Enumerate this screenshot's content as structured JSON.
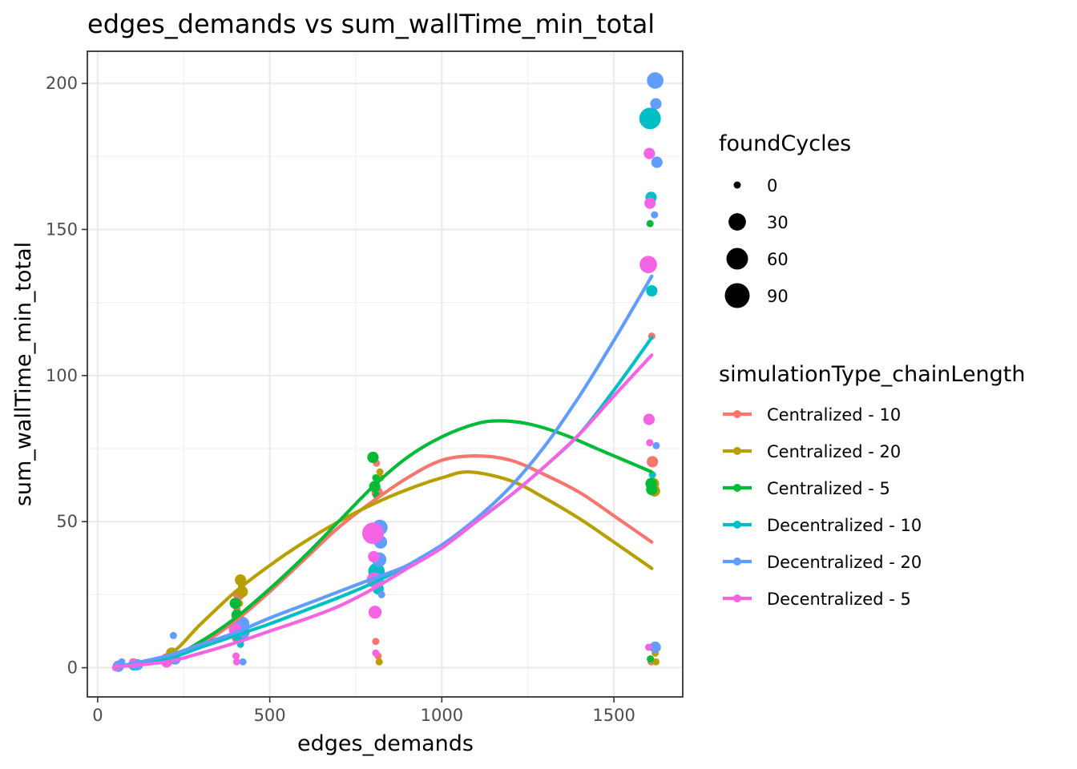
{
  "chart_data": {
    "type": "scatter",
    "title": "edges_demands  vs  sum_wallTime_min_total",
    "xlabel": "edges_demands",
    "ylabel": "sum_wallTime_min_total",
    "xlim": [
      -30,
      1700
    ],
    "ylim": [
      -10,
      211
    ],
    "x_ticks": [
      0,
      500,
      1000,
      1500
    ],
    "y_ticks": [
      0,
      50,
      100,
      150,
      200
    ],
    "x_tick_labels": [
      "0",
      "500",
      "1000",
      "1500"
    ],
    "y_tick_labels": [
      "0",
      "50",
      "100",
      "150",
      "200"
    ],
    "grid": true,
    "legend_position": "right",
    "size_legend": {
      "title": "foundCycles",
      "entries": [
        {
          "label": "0",
          "value": 0
        },
        {
          "label": "30",
          "value": 30
        },
        {
          "label": "60",
          "value": 60
        },
        {
          "label": "90",
          "value": 90
        }
      ]
    },
    "color_legend": {
      "title": "simulationType_chainLength"
    },
    "series": [
      {
        "name": "Centralized - 10",
        "color": "#F8766D",
        "points": [
          [
            55,
            0,
            0
          ],
          [
            60,
            0.3,
            0
          ],
          [
            100,
            1,
            0
          ],
          [
            110,
            1.5,
            0
          ],
          [
            200,
            3,
            5
          ],
          [
            210,
            4,
            0
          ],
          [
            400,
            10,
            0
          ],
          [
            405,
            20,
            0
          ],
          [
            410,
            25,
            5
          ],
          [
            415,
            12,
            0
          ],
          [
            810,
            70,
            0
          ],
          [
            812,
            60,
            5
          ],
          [
            808,
            9,
            0
          ],
          [
            815,
            4,
            0
          ],
          [
            1610,
            113.5,
            0
          ],
          [
            1612,
            70.5,
            5
          ],
          [
            1608,
            2,
            0
          ]
        ],
        "trend": [
          [
            55,
            0.3
          ],
          [
            200,
            3
          ],
          [
            300,
            8
          ],
          [
            400,
            16
          ],
          [
            500,
            26
          ],
          [
            600,
            37
          ],
          [
            700,
            48
          ],
          [
            800,
            57
          ],
          [
            900,
            65
          ],
          [
            1000,
            71
          ],
          [
            1100,
            72.5
          ],
          [
            1200,
            71
          ],
          [
            1300,
            66
          ],
          [
            1400,
            60
          ],
          [
            1500,
            52
          ],
          [
            1610,
            43
          ]
        ]
      },
      {
        "name": "Centralized - 20",
        "color": "#B79F00",
        "points": [
          [
            58,
            0,
            0
          ],
          [
            62,
            0.2,
            0
          ],
          [
            105,
            2,
            0
          ],
          [
            112,
            1,
            0
          ],
          [
            215,
            5,
            5
          ],
          [
            220,
            4,
            0
          ],
          [
            415,
            30,
            5
          ],
          [
            418,
            28,
            0
          ],
          [
            420,
            26,
            5
          ],
          [
            412,
            22,
            0
          ],
          [
            820,
            67,
            0
          ],
          [
            822,
            65,
            0
          ],
          [
            818,
            2,
            0
          ],
          [
            1615,
            63,
            5
          ],
          [
            1618,
            60.5,
            5
          ],
          [
            1620,
            5,
            0
          ],
          [
            1622,
            2,
            0
          ]
        ],
        "trend": [
          [
            55,
            0.3
          ],
          [
            200,
            4
          ],
          [
            300,
            15
          ],
          [
            400,
            26
          ],
          [
            500,
            35
          ],
          [
            600,
            43
          ],
          [
            700,
            50
          ],
          [
            800,
            56
          ],
          [
            900,
            61
          ],
          [
            1000,
            65
          ],
          [
            1080,
            67
          ],
          [
            1200,
            64
          ],
          [
            1300,
            58
          ],
          [
            1400,
            51
          ],
          [
            1500,
            43
          ],
          [
            1610,
            34
          ]
        ]
      },
      {
        "name": "Centralized - 5",
        "color": "#00BA38",
        "points": [
          [
            52,
            0,
            0
          ],
          [
            56,
            0.5,
            0
          ],
          [
            100,
            1,
            0
          ],
          [
            108,
            0.5,
            0
          ],
          [
            205,
            3,
            0
          ],
          [
            400,
            22,
            5
          ],
          [
            405,
            18,
            5
          ],
          [
            408,
            14,
            0
          ],
          [
            800,
            72,
            5
          ],
          [
            805,
            62,
            5
          ],
          [
            808,
            65,
            0
          ],
          [
            810,
            59,
            0
          ],
          [
            1605,
            152,
            0
          ],
          [
            1608,
            63,
            5
          ],
          [
            1610,
            61,
            5
          ],
          [
            1606,
            3,
            0
          ]
        ],
        "trend": [
          [
            55,
            0.2
          ],
          [
            200,
            3
          ],
          [
            300,
            9
          ],
          [
            400,
            17
          ],
          [
            500,
            27
          ],
          [
            600,
            38
          ],
          [
            700,
            50
          ],
          [
            800,
            62
          ],
          [
            900,
            72
          ],
          [
            1000,
            79
          ],
          [
            1100,
            83.5
          ],
          [
            1170,
            84.5
          ],
          [
            1250,
            83.5
          ],
          [
            1350,
            80
          ],
          [
            1450,
            75
          ],
          [
            1550,
            70
          ],
          [
            1610,
            67
          ]
        ]
      },
      {
        "name": "Decentralized - 10",
        "color": "#00BFC4",
        "points": [
          [
            55,
            0,
            0
          ],
          [
            60,
            0.3,
            0
          ],
          [
            105,
            1,
            5
          ],
          [
            110,
            0.5,
            0
          ],
          [
            210,
            3,
            5
          ],
          [
            215,
            4,
            0
          ],
          [
            410,
            13,
            25
          ],
          [
            412,
            10,
            5
          ],
          [
            415,
            8,
            0
          ],
          [
            810,
            33,
            25
          ],
          [
            812,
            30,
            10
          ],
          [
            815,
            27,
            5
          ],
          [
            1605,
            188,
            60
          ],
          [
            1608,
            161,
            5
          ],
          [
            1610,
            129,
            5
          ],
          [
            1612,
            66,
            0
          ],
          [
            1609,
            7,
            0
          ]
        ],
        "trend": [
          [
            55,
            0.3
          ],
          [
            200,
            3
          ],
          [
            300,
            7
          ],
          [
            400,
            11
          ],
          [
            500,
            15
          ],
          [
            600,
            19.5
          ],
          [
            700,
            24
          ],
          [
            800,
            29
          ],
          [
            900,
            35
          ],
          [
            1000,
            42
          ],
          [
            1100,
            50
          ],
          [
            1200,
            59
          ],
          [
            1300,
            69
          ],
          [
            1400,
            80
          ],
          [
            1500,
            95
          ],
          [
            1610,
            113
          ]
        ]
      },
      {
        "name": "Decentralized - 20",
        "color": "#619CFF",
        "points": [
          [
            60,
            0.5,
            5
          ],
          [
            65,
            1,
            0
          ],
          [
            70,
            2,
            0
          ],
          [
            115,
            1,
            5
          ],
          [
            120,
            0.5,
            0
          ],
          [
            220,
            11,
            0
          ],
          [
            225,
            3,
            5
          ],
          [
            420,
            15,
            15
          ],
          [
            422,
            2,
            0
          ],
          [
            425,
            12,
            5
          ],
          [
            820,
            48,
            20
          ],
          [
            822,
            43,
            10
          ],
          [
            818,
            37,
            15
          ],
          [
            825,
            25,
            0
          ],
          [
            1620,
            201,
            25
          ],
          [
            1622,
            193,
            5
          ],
          [
            1625,
            173,
            5
          ],
          [
            1618,
            155,
            0
          ],
          [
            1623,
            76,
            0
          ],
          [
            1620,
            7,
            5
          ]
        ],
        "trend": [
          [
            55,
            0.3
          ],
          [
            200,
            4
          ],
          [
            300,
            8
          ],
          [
            400,
            12
          ],
          [
            500,
            17
          ],
          [
            600,
            21.5
          ],
          [
            700,
            26
          ],
          [
            800,
            30.5
          ],
          [
            900,
            35
          ],
          [
            1000,
            42
          ],
          [
            1100,
            51
          ],
          [
            1200,
            62
          ],
          [
            1300,
            76
          ],
          [
            1400,
            93
          ],
          [
            1500,
            112
          ],
          [
            1610,
            134
          ]
        ]
      },
      {
        "name": "Decentralized - 5",
        "color": "#F564E3",
        "points": [
          [
            52,
            0,
            0
          ],
          [
            55,
            0.2,
            0
          ],
          [
            100,
            1,
            0
          ],
          [
            102,
            2,
            0
          ],
          [
            200,
            2,
            5
          ],
          [
            205,
            3,
            0
          ],
          [
            400,
            13,
            10
          ],
          [
            402,
            4,
            0
          ],
          [
            404,
            2,
            0
          ],
          [
            800,
            46,
            60
          ],
          [
            802,
            38,
            5
          ],
          [
            804,
            30,
            20
          ],
          [
            806,
            19,
            10
          ],
          [
            808,
            5,
            0
          ],
          [
            1600,
            138,
            30
          ],
          [
            1603,
            176,
            5
          ],
          [
            1605,
            159,
            5
          ],
          [
            1602,
            85,
            5
          ],
          [
            1604,
            77,
            0
          ],
          [
            1601,
            7,
            0
          ]
        ],
        "trend": [
          [
            55,
            0.3
          ],
          [
            200,
            2
          ],
          [
            300,
            5
          ],
          [
            400,
            8.5
          ],
          [
            500,
            12.5
          ],
          [
            600,
            16.5
          ],
          [
            700,
            21
          ],
          [
            800,
            27
          ],
          [
            900,
            34
          ],
          [
            1000,
            41
          ],
          [
            1100,
            50
          ],
          [
            1200,
            59
          ],
          [
            1300,
            69
          ],
          [
            1400,
            80
          ],
          [
            1500,
            93
          ],
          [
            1610,
            107
          ]
        ]
      }
    ]
  }
}
